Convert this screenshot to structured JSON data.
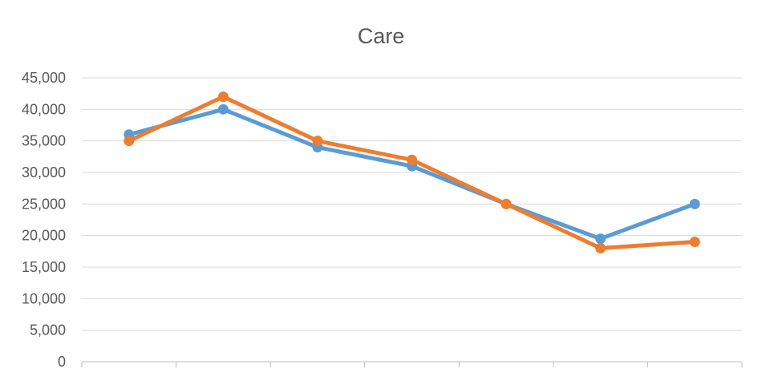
{
  "chart_data": {
    "type": "line",
    "title": "Care",
    "xlabel": "",
    "ylabel": "",
    "categories": [
      "",
      "",
      "",
      "",
      "",
      "",
      ""
    ],
    "ylim": [
      0,
      45000
    ],
    "yticks": [
      0,
      5000,
      10000,
      15000,
      20000,
      25000,
      30000,
      35000,
      40000,
      45000
    ],
    "ytick_labels": [
      "0",
      "5,000",
      "10,000",
      "15,000",
      "20,000",
      "25,000",
      "30,000",
      "35,000",
      "40,000",
      "45,000"
    ],
    "grid": true,
    "legend": "none",
    "series": [
      {
        "color": "#5B9BD5",
        "values": [
          36000,
          40000,
          34000,
          31000,
          25000,
          19500,
          25000
        ]
      },
      {
        "color": "#ED7D31",
        "values": [
          35000,
          42000,
          35000,
          32000,
          25000,
          18000,
          19000
        ]
      }
    ]
  },
  "colors": {
    "grid": "#D9D9D9",
    "axis": "#BFBFBF",
    "text": "#595959"
  }
}
